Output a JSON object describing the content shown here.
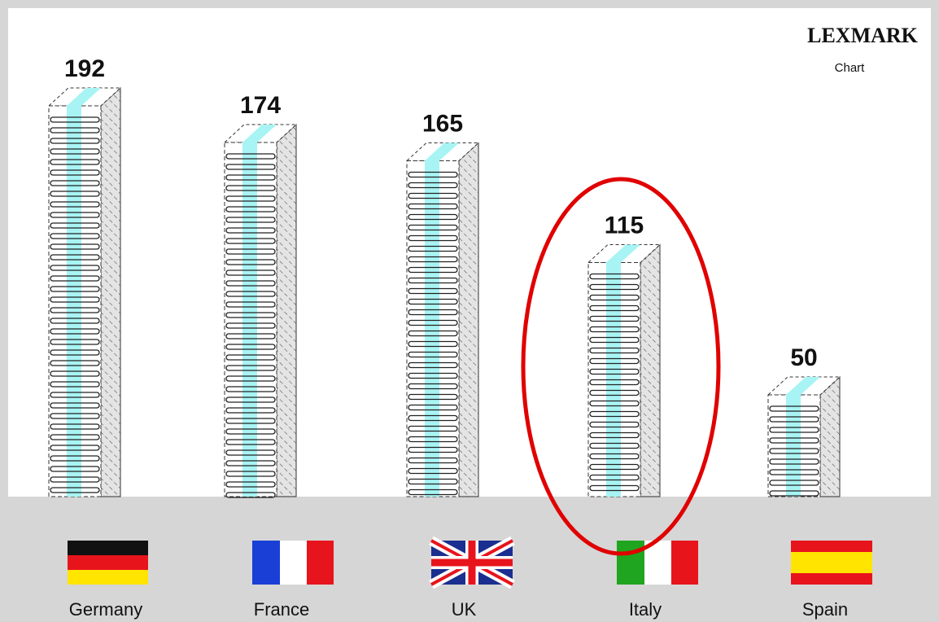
{
  "logo": {
    "brand": "LEXMARK",
    "caption": "Chart"
  },
  "chart_data": {
    "type": "bar",
    "categories": [
      "Germany",
      "France",
      "UK",
      "Italy",
      "Spain"
    ],
    "values": [
      192,
      174,
      165,
      115,
      50
    ],
    "color": "#a8f4f4"
  }
}
